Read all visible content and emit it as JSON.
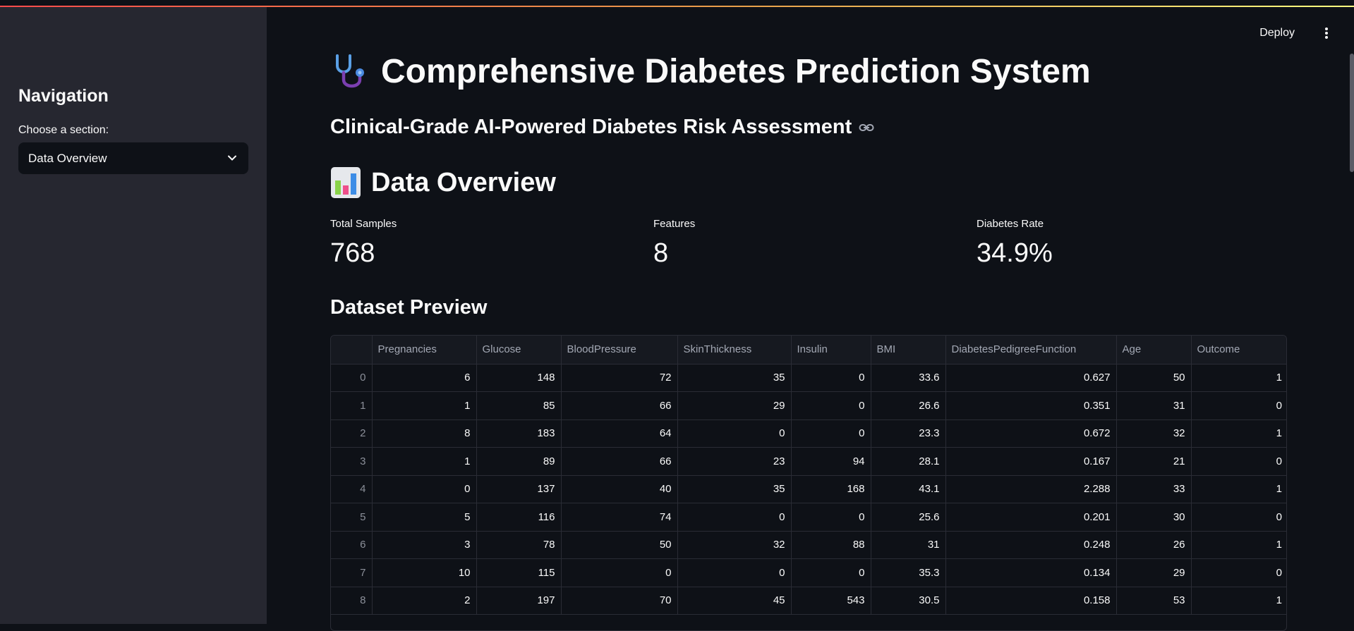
{
  "sidebar": {
    "heading": "Navigation",
    "select_label": "Choose a section:",
    "select_value": "Data Overview"
  },
  "header": {
    "deploy_label": "Deploy"
  },
  "main": {
    "title": "Comprehensive Diabetes Prediction System",
    "subtitle": "Clinical-Grade AI-Powered Diabetes Risk Assessment",
    "section_title": "Data Overview",
    "metrics": [
      {
        "label": "Total Samples",
        "value": "768"
      },
      {
        "label": "Features",
        "value": "8"
      },
      {
        "label": "Diabetes Rate",
        "value": "34.9%"
      }
    ],
    "preview_title": "Dataset Preview",
    "table": {
      "columns": [
        "",
        "Pregnancies",
        "Glucose",
        "BloodPressure",
        "SkinThickness",
        "Insulin",
        "BMI",
        "DiabetesPedigreeFunction",
        "Age",
        "Outcome"
      ],
      "rows": [
        [
          "0",
          "6",
          "148",
          "72",
          "35",
          "0",
          "33.6",
          "0.627",
          "50",
          "1"
        ],
        [
          "1",
          "1",
          "85",
          "66",
          "29",
          "0",
          "26.6",
          "0.351",
          "31",
          "0"
        ],
        [
          "2",
          "8",
          "183",
          "64",
          "0",
          "0",
          "23.3",
          "0.672",
          "32",
          "1"
        ],
        [
          "3",
          "1",
          "89",
          "66",
          "23",
          "94",
          "28.1",
          "0.167",
          "21",
          "0"
        ],
        [
          "4",
          "0",
          "137",
          "40",
          "35",
          "168",
          "43.1",
          "2.288",
          "33",
          "1"
        ],
        [
          "5",
          "5",
          "116",
          "74",
          "0",
          "0",
          "25.6",
          "0.201",
          "30",
          "0"
        ],
        [
          "6",
          "3",
          "78",
          "50",
          "32",
          "88",
          "31",
          "0.248",
          "26",
          "1"
        ],
        [
          "7",
          "10",
          "115",
          "0",
          "0",
          "0",
          "35.3",
          "0.134",
          "29",
          "0"
        ],
        [
          "8",
          "2",
          "197",
          "70",
          "45",
          "543",
          "30.5",
          "0.158",
          "53",
          "1"
        ]
      ]
    }
  },
  "icons": {
    "title_icon": "stethoscope-icon",
    "section_icon": "bar-chart-icon",
    "link_icon": "link-icon",
    "chevron": "chevron-down-icon",
    "menu": "kebab-menu-icon"
  },
  "colors": {
    "background": "#0e1117",
    "sidebar": "#262730",
    "accent": "#ff4b4b"
  }
}
